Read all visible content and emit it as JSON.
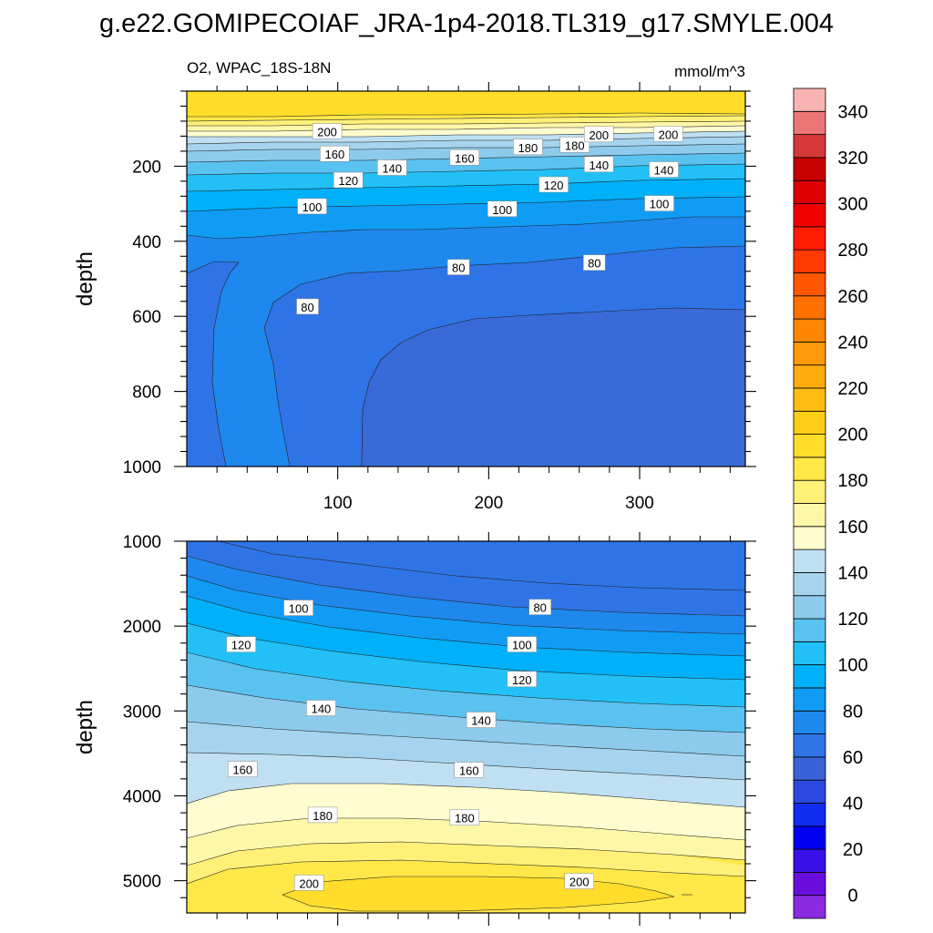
{
  "chart_data": {
    "type": "heatmap",
    "title": "g.e22.GOMIPECOIAF_JRA-1p4-2018.TL319_g17.SMYLE.004",
    "variable": "O2, WPAC_18S-18N",
    "units": "mmol/m^3",
    "colorbar": {
      "levels": [
        0,
        10,
        20,
        30,
        40,
        50,
        60,
        70,
        80,
        90,
        100,
        110,
        120,
        130,
        140,
        150,
        160,
        170,
        180,
        190,
        200,
        210,
        220,
        230,
        240,
        250,
        260,
        270,
        280,
        290,
        300,
        310,
        320,
        330,
        340,
        350
      ],
      "tick_labels": [
        "0",
        "20",
        "40",
        "60",
        "80",
        "100",
        "120",
        "140",
        "160",
        "180",
        "200",
        "220",
        "240",
        "260",
        "280",
        "300",
        "320",
        "340"
      ],
      "colors": [
        "#8a2be2",
        "#6a0ddc",
        "#3a10e8",
        "#0000f0",
        "#0f2cf0",
        "#2a48e0",
        "#3a62d8",
        "#2f74e6",
        "#1f88ee",
        "#109cf4",
        "#00b0f8",
        "#22c0f6",
        "#5ac2f0",
        "#8ccbec",
        "#a6d4ee",
        "#bfe0f2",
        "#fffdd0",
        "#fff7a8",
        "#fff078",
        "#ffe848",
        "#ffdd2a",
        "#ffce18",
        "#ffbd14",
        "#ffac10",
        "#ff9a0a",
        "#ff8600",
        "#ff7000",
        "#ff5600",
        "#ff3a00",
        "#ff1c00",
        "#f20000",
        "#dc0000",
        "#c80000",
        "#d43838",
        "#ec7676",
        "#f8b2b2"
      ]
    },
    "panels": [
      {
        "name": "upper",
        "xlim": [
          0,
          370
        ],
        "ylim": [
          0,
          1000
        ],
        "y_inverted": true,
        "x_ticks": [
          100,
          200,
          300
        ],
        "y_ticks": [
          200,
          400,
          600,
          800,
          1000
        ],
        "ylabel": "depth",
        "contour_labels": [
          {
            "text": "200",
            "x": 93,
            "y": 108
          },
          {
            "text": "160",
            "x": 98,
            "y": 168
          },
          {
            "text": "140",
            "x": 136,
            "y": 205
          },
          {
            "text": "160",
            "x": 184,
            "y": 178
          },
          {
            "text": "180",
            "x": 226,
            "y": 150
          },
          {
            "text": "180",
            "x": 257,
            "y": 144
          },
          {
            "text": "200",
            "x": 273,
            "y": 116
          },
          {
            "text": "200",
            "x": 319,
            "y": 115
          },
          {
            "text": "140",
            "x": 273,
            "y": 196
          },
          {
            "text": "140",
            "x": 316,
            "y": 210
          },
          {
            "text": "120",
            "x": 107,
            "y": 238
          },
          {
            "text": "120",
            "x": 243,
            "y": 250
          },
          {
            "text": "100",
            "x": 83,
            "y": 308
          },
          {
            "text": "100",
            "x": 209,
            "y": 315
          },
          {
            "text": "100",
            "x": 313,
            "y": 300
          },
          {
            "text": "80",
            "x": 180,
            "y": 470
          },
          {
            "text": "80",
            "x": 270,
            "y": 458
          },
          {
            "text": "80",
            "x": 80,
            "y": 575
          }
        ]
      },
      {
        "name": "lower",
        "xlim": [
          0,
          370
        ],
        "ylim": [
          1000,
          5380
        ],
        "y_inverted": true,
        "x_ticks": [
          100,
          200,
          300
        ],
        "y_ticks": [
          1000,
          2000,
          3000,
          4000,
          5000
        ],
        "ylabel": "depth",
        "contour_labels": [
          {
            "text": "100",
            "x": 74,
            "y": 1790
          },
          {
            "text": "80",
            "x": 234,
            "y": 1780
          },
          {
            "text": "120",
            "x": 36,
            "y": 2220
          },
          {
            "text": "100",
            "x": 222,
            "y": 2220
          },
          {
            "text": "120",
            "x": 222,
            "y": 2630
          },
          {
            "text": "140",
            "x": 89,
            "y": 2970
          },
          {
            "text": "140",
            "x": 195,
            "y": 3110
          },
          {
            "text": "160",
            "x": 37,
            "y": 3690
          },
          {
            "text": "160",
            "x": 187,
            "y": 3700
          },
          {
            "text": "180",
            "x": 90,
            "y": 4230
          },
          {
            "text": "180",
            "x": 184,
            "y": 4260
          },
          {
            "text": "200",
            "x": 81,
            "y": 5030
          },
          {
            "text": "200",
            "x": 260,
            "y": 5010
          }
        ]
      }
    ]
  }
}
